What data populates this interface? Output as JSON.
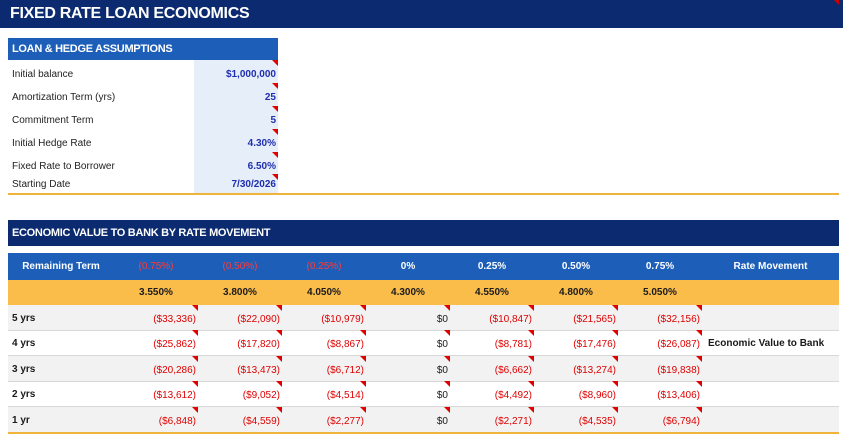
{
  "title": "FIXED RATE LOAN ECONOMICS",
  "assumptions": {
    "header": "LOAN & HEDGE ASSUMPTIONS",
    "rows": [
      {
        "label": "Initial balance",
        "value": "$1,000,000"
      },
      {
        "label": "Amortization Term (yrs)",
        "value": "25"
      },
      {
        "label": "Commitment Term",
        "value": "5"
      },
      {
        "label": "Initial Hedge Rate",
        "value": "4.30%"
      },
      {
        "label": "Fixed Rate to Borrower",
        "value": "6.50%"
      },
      {
        "label": "Starting Date",
        "value": "7/30/2026"
      }
    ]
  },
  "economic": {
    "header": "ECONOMIC VALUE TO BANK BY RATE MOVEMENT",
    "remaining_term_label": "Remaining Term",
    "rate_movements": [
      "(0.75%)",
      "(0.50%)",
      "(0.25%)",
      "0%",
      "0.25%",
      "0.50%",
      "0.75%"
    ],
    "rate_movement_label": "Rate Movement",
    "rates": [
      "3.550%",
      "3.800%",
      "4.050%",
      "4.300%",
      "4.550%",
      "4.800%",
      "5.050%"
    ],
    "economic_value_label": "Economic Value to Bank",
    "rows": [
      {
        "term": "5 yrs",
        "values": [
          "($33,336)",
          "($22,090)",
          "($10,979)",
          "$0",
          "($10,847)",
          "($21,565)",
          "($32,156)"
        ]
      },
      {
        "term": "4 yrs",
        "values": [
          "($25,862)",
          "($17,820)",
          "($8,867)",
          "$0",
          "($8,781)",
          "($17,476)",
          "($26,087)"
        ]
      },
      {
        "term": "3 yrs",
        "values": [
          "($20,286)",
          "($13,473)",
          "($6,712)",
          "$0",
          "($6,662)",
          "($13,274)",
          "($19,838)"
        ]
      },
      {
        "term": "2 yrs",
        "values": [
          "($13,612)",
          "($9,052)",
          "($4,514)",
          "$0",
          "($4,492)",
          "($8,960)",
          "($13,406)"
        ]
      },
      {
        "term": "1 yr",
        "values": [
          "($6,848)",
          "($4,559)",
          "($2,277)",
          "$0",
          "($2,271)",
          "($4,535)",
          "($6,794)"
        ]
      }
    ]
  },
  "colors": {
    "navy": "#0b2a6f",
    "blue": "#1d5fb8",
    "gold": "#fbbd4a",
    "negative_red": "#e00000",
    "input_blue": "#1f2fb0"
  }
}
